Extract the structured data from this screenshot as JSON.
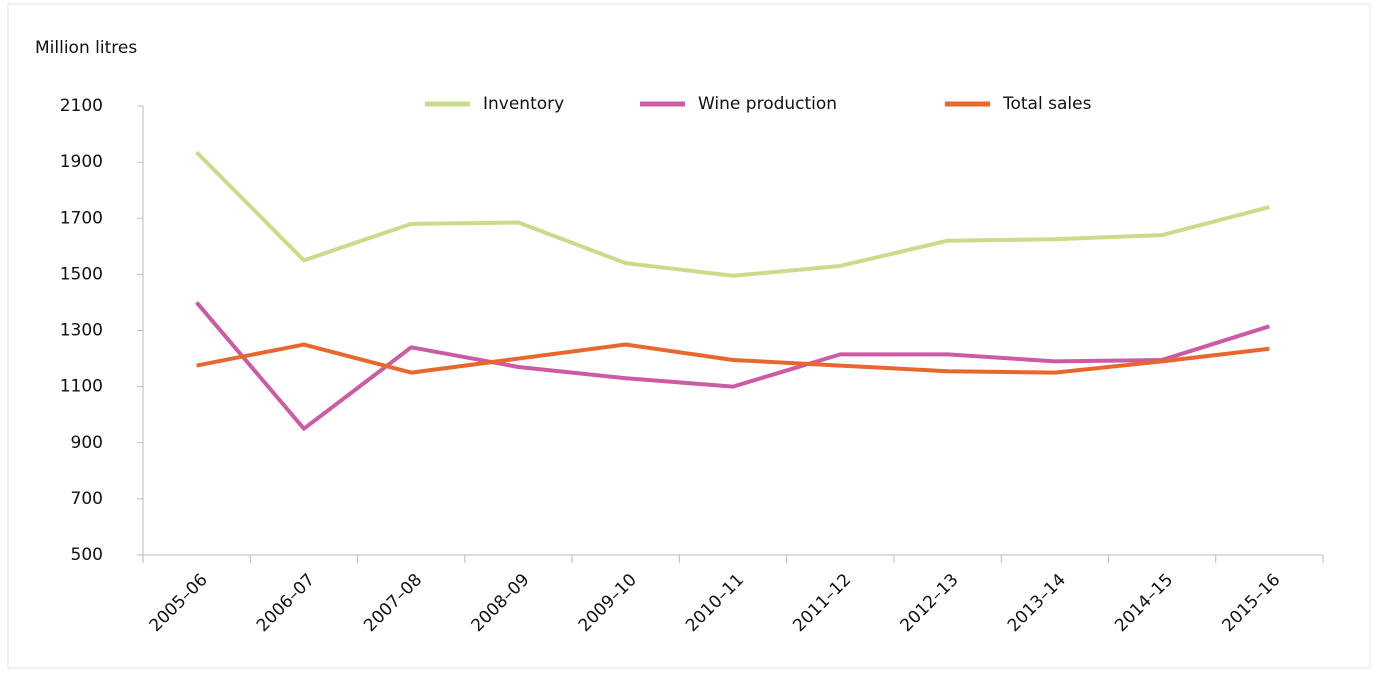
{
  "chart_data": {
    "type": "line",
    "y_label": "Million litres",
    "categories": [
      "2005–06",
      "2006–07",
      "2007–08",
      "2008–09",
      "2009–10",
      "2010–11",
      "2011–12",
      "2012–13",
      "2013–14",
      "2014–15",
      "2015–16"
    ],
    "series": [
      {
        "name": "Inventory",
        "color": "#c9dc8c",
        "values": [
          1935,
          1550,
          1680,
          1685,
          1540,
          1495,
          1530,
          1620,
          1625,
          1640,
          1740
        ]
      },
      {
        "name": "Wine production",
        "color": "#cc5ba4",
        "values": [
          1400,
          950,
          1240,
          1170,
          1130,
          1100,
          1215,
          1215,
          1190,
          1195,
          1315
        ]
      },
      {
        "name": "Total sales",
        "color": "#e8672c",
        "values": [
          1175,
          1250,
          1150,
          1200,
          1250,
          1195,
          1175,
          1155,
          1150,
          1190,
          1235
        ]
      }
    ],
    "ylim": [
      500,
      2100
    ],
    "yticks": [
      500,
      700,
      900,
      1100,
      1300,
      1500,
      1700,
      1900,
      2100
    ],
    "grid": false,
    "legend": "top"
  }
}
